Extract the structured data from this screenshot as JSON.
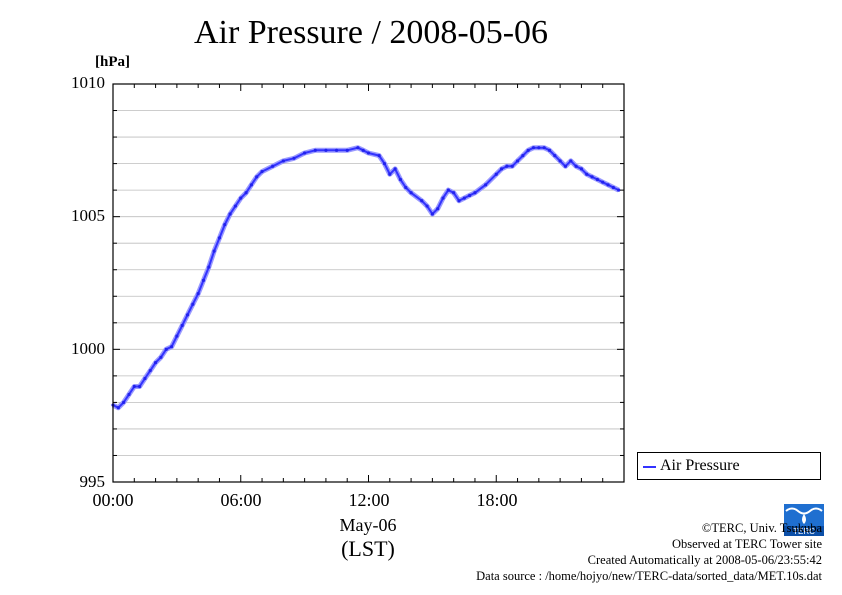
{
  "chart_data": {
    "type": "line",
    "title": "Air Pressure / 2008-05-06",
    "ylabel": "[hPa]",
    "xlabel": "May-06",
    "xlabel2": "(LST)",
    "ylim": [
      995,
      1010
    ],
    "xlim_hours": [
      0,
      24
    ],
    "y_ticks": [
      "995",
      "1000",
      "1005",
      "1010"
    ],
    "x_ticks": [
      "00:00",
      "06:00",
      "12:00",
      "18:00"
    ],
    "grid": "horizontal",
    "legend_position": "bottom-right outside",
    "series": [
      {
        "name": "Air Pressure",
        "color": "#3333ff",
        "x_hours": [
          0.0,
          0.25,
          0.5,
          0.75,
          1.0,
          1.25,
          1.5,
          1.75,
          2.0,
          2.25,
          2.5,
          2.75,
          3.0,
          3.25,
          3.5,
          3.75,
          4.0,
          4.25,
          4.5,
          4.75,
          5.0,
          5.25,
          5.5,
          5.75,
          6.0,
          6.25,
          6.5,
          6.75,
          7.0,
          7.5,
          8.0,
          8.5,
          9.0,
          9.5,
          10.0,
          10.5,
          11.0,
          11.5,
          11.75,
          12.0,
          12.5,
          12.75,
          13.0,
          13.25,
          13.5,
          13.75,
          14.0,
          14.5,
          14.75,
          15.0,
          15.25,
          15.5,
          15.75,
          16.0,
          16.25,
          16.5,
          16.75,
          17.0,
          17.5,
          18.0,
          18.25,
          18.5,
          18.75,
          19.0,
          19.25,
          19.5,
          19.75,
          20.0,
          20.25,
          20.5,
          20.75,
          21.0,
          21.25,
          21.5,
          21.75,
          22.0,
          22.25,
          22.5,
          22.75,
          23.0,
          23.25,
          23.5,
          23.75
        ],
        "values": [
          997.9,
          997.8,
          998.0,
          998.3,
          998.6,
          998.6,
          998.9,
          999.2,
          999.5,
          999.7,
          1000.0,
          1000.1,
          1000.5,
          1000.9,
          1001.3,
          1001.7,
          1002.1,
          1002.6,
          1003.1,
          1003.7,
          1004.2,
          1004.7,
          1005.1,
          1005.4,
          1005.7,
          1005.9,
          1006.2,
          1006.5,
          1006.7,
          1006.9,
          1007.1,
          1007.2,
          1007.4,
          1007.5,
          1007.5,
          1007.5,
          1007.5,
          1007.6,
          1007.5,
          1007.4,
          1007.3,
          1007.0,
          1006.6,
          1006.8,
          1006.4,
          1006.1,
          1005.9,
          1005.6,
          1005.4,
          1005.1,
          1005.3,
          1005.7,
          1006.0,
          1005.9,
          1005.6,
          1005.7,
          1005.8,
          1005.9,
          1006.2,
          1006.6,
          1006.8,
          1006.9,
          1006.9,
          1007.1,
          1007.3,
          1007.5,
          1007.6,
          1007.6,
          1007.6,
          1007.5,
          1007.3,
          1007.1,
          1006.9,
          1007.1,
          1006.9,
          1006.8,
          1006.6,
          1006.5,
          1006.4,
          1006.3,
          1006.2,
          1006.1,
          1006.0
        ]
      }
    ]
  },
  "credits": {
    "line1": "©TERC, Univ. Tsukuba",
    "line2": "Observed at TERC Tower site",
    "line3": "Created Automatically at 2008-05-06/23:55:42",
    "line4": "Data source : /home/hojyo/new/TERC-data/sorted_data/MET.10s.dat"
  },
  "logo_text": "TERC",
  "logo_icon": "terc-wave-logo-icon"
}
